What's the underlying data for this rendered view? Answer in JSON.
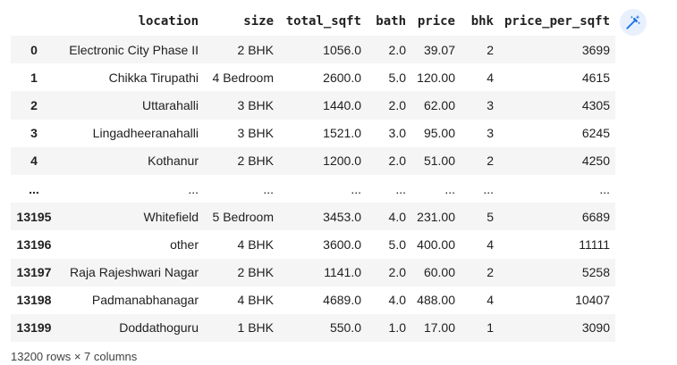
{
  "table": {
    "columns": [
      "",
      "location",
      "size",
      "total_sqft",
      "bath",
      "price",
      "bhk",
      "price_per_sqft"
    ],
    "rows": [
      {
        "index": "0",
        "location": "Electronic City Phase II",
        "size": "2 BHK",
        "total_sqft": "1056.0",
        "bath": "2.0",
        "price": "39.07",
        "bhk": "2",
        "price_per_sqft": "3699"
      },
      {
        "index": "1",
        "location": "Chikka Tirupathi",
        "size": "4 Bedroom",
        "total_sqft": "2600.0",
        "bath": "5.0",
        "price": "120.00",
        "bhk": "4",
        "price_per_sqft": "4615"
      },
      {
        "index": "2",
        "location": "Uttarahalli",
        "size": "3 BHK",
        "total_sqft": "1440.0",
        "bath": "2.0",
        "price": "62.00",
        "bhk": "3",
        "price_per_sqft": "4305"
      },
      {
        "index": "3",
        "location": "Lingadheeranahalli",
        "size": "3 BHK",
        "total_sqft": "1521.0",
        "bath": "3.0",
        "price": "95.00",
        "bhk": "3",
        "price_per_sqft": "6245"
      },
      {
        "index": "4",
        "location": "Kothanur",
        "size": "2 BHK",
        "total_sqft": "1200.0",
        "bath": "2.0",
        "price": "51.00",
        "bhk": "2",
        "price_per_sqft": "4250"
      },
      {
        "index": "...",
        "location": "...",
        "size": "...",
        "total_sqft": "...",
        "bath": "...",
        "price": "...",
        "bhk": "...",
        "price_per_sqft": "..."
      },
      {
        "index": "13195",
        "location": "Whitefield",
        "size": "5 Bedroom",
        "total_sqft": "3453.0",
        "bath": "4.0",
        "price": "231.00",
        "bhk": "5",
        "price_per_sqft": "6689"
      },
      {
        "index": "13196",
        "location": "other",
        "size": "4 BHK",
        "total_sqft": "3600.0",
        "bath": "5.0",
        "price": "400.00",
        "bhk": "4",
        "price_per_sqft": "11111"
      },
      {
        "index": "13197",
        "location": "Raja Rajeshwari Nagar",
        "size": "2 BHK",
        "total_sqft": "1141.0",
        "bath": "2.0",
        "price": "60.00",
        "bhk": "2",
        "price_per_sqft": "5258"
      },
      {
        "index": "13198",
        "location": "Padmanabhanagar",
        "size": "4 BHK",
        "total_sqft": "4689.0",
        "bath": "4.0",
        "price": "488.00",
        "bhk": "4",
        "price_per_sqft": "10407"
      },
      {
        "index": "13199",
        "location": "Doddathoguru",
        "size": "1 BHK",
        "total_sqft": "550.0",
        "bath": "1.0",
        "price": "17.00",
        "bhk": "1",
        "price_per_sqft": "3090"
      }
    ]
  },
  "footer": {
    "shape_text": "13200 rows × 7 columns"
  },
  "toolbar": {
    "magic_icon": "magic-wand-icon",
    "accent_color": "#1a73e8",
    "button_bg": "#e8f0fe"
  }
}
